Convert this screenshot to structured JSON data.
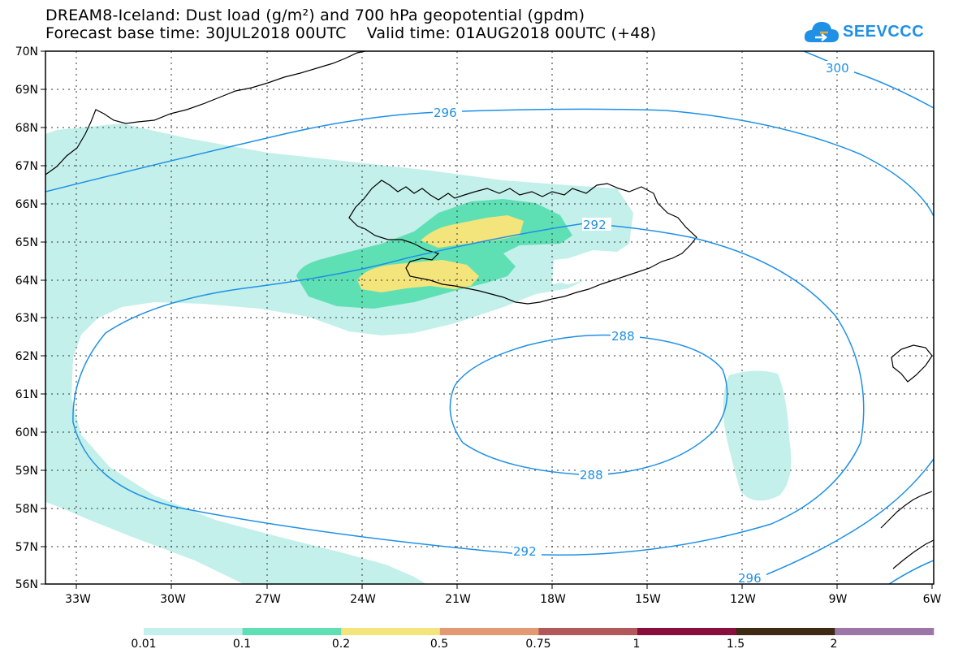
{
  "title": {
    "line1": "DREAM8-Iceland: Dust load (g/m²) and 700 hPa geopotential (gpdm)",
    "line2": "Forecast base time: 30JUL2018 00UTC    Valid time: 01AUG2018 00UTC (+48)"
  },
  "logo": {
    "text": "SEEVCCC",
    "icon": "cloud-logo-icon"
  },
  "map": {
    "lat_labels": [
      "70N",
      "69N",
      "68N",
      "67N",
      "66N",
      "65N",
      "64N",
      "63N",
      "62N",
      "61N",
      "60N",
      "59N",
      "58N",
      "57N",
      "56N"
    ],
    "lon_labels": [
      "33W",
      "30W",
      "27W",
      "24W",
      "21W",
      "18W",
      "15W",
      "12W",
      "9W",
      "6W"
    ],
    "contour_labels": [
      "300",
      "296",
      "292",
      "288",
      "288",
      "292",
      "296"
    ]
  },
  "legend": {
    "colors": [
      "#c3f0ea",
      "#5fe0b4",
      "#f4e47c",
      "#e39a72",
      "#b2585a",
      "#8a0e3c",
      "#3e2a12",
      "#9b76a7"
    ],
    "labels": [
      "0.01",
      "0.1",
      "0.2",
      "0.5",
      "0.75",
      "1",
      "1.5",
      "2"
    ]
  },
  "colors": {
    "contour": "#1e90e6",
    "dust_low": "#c3f0ea",
    "dust_mid": "#5fe0b4",
    "dust_high": "#f4e47c"
  }
}
